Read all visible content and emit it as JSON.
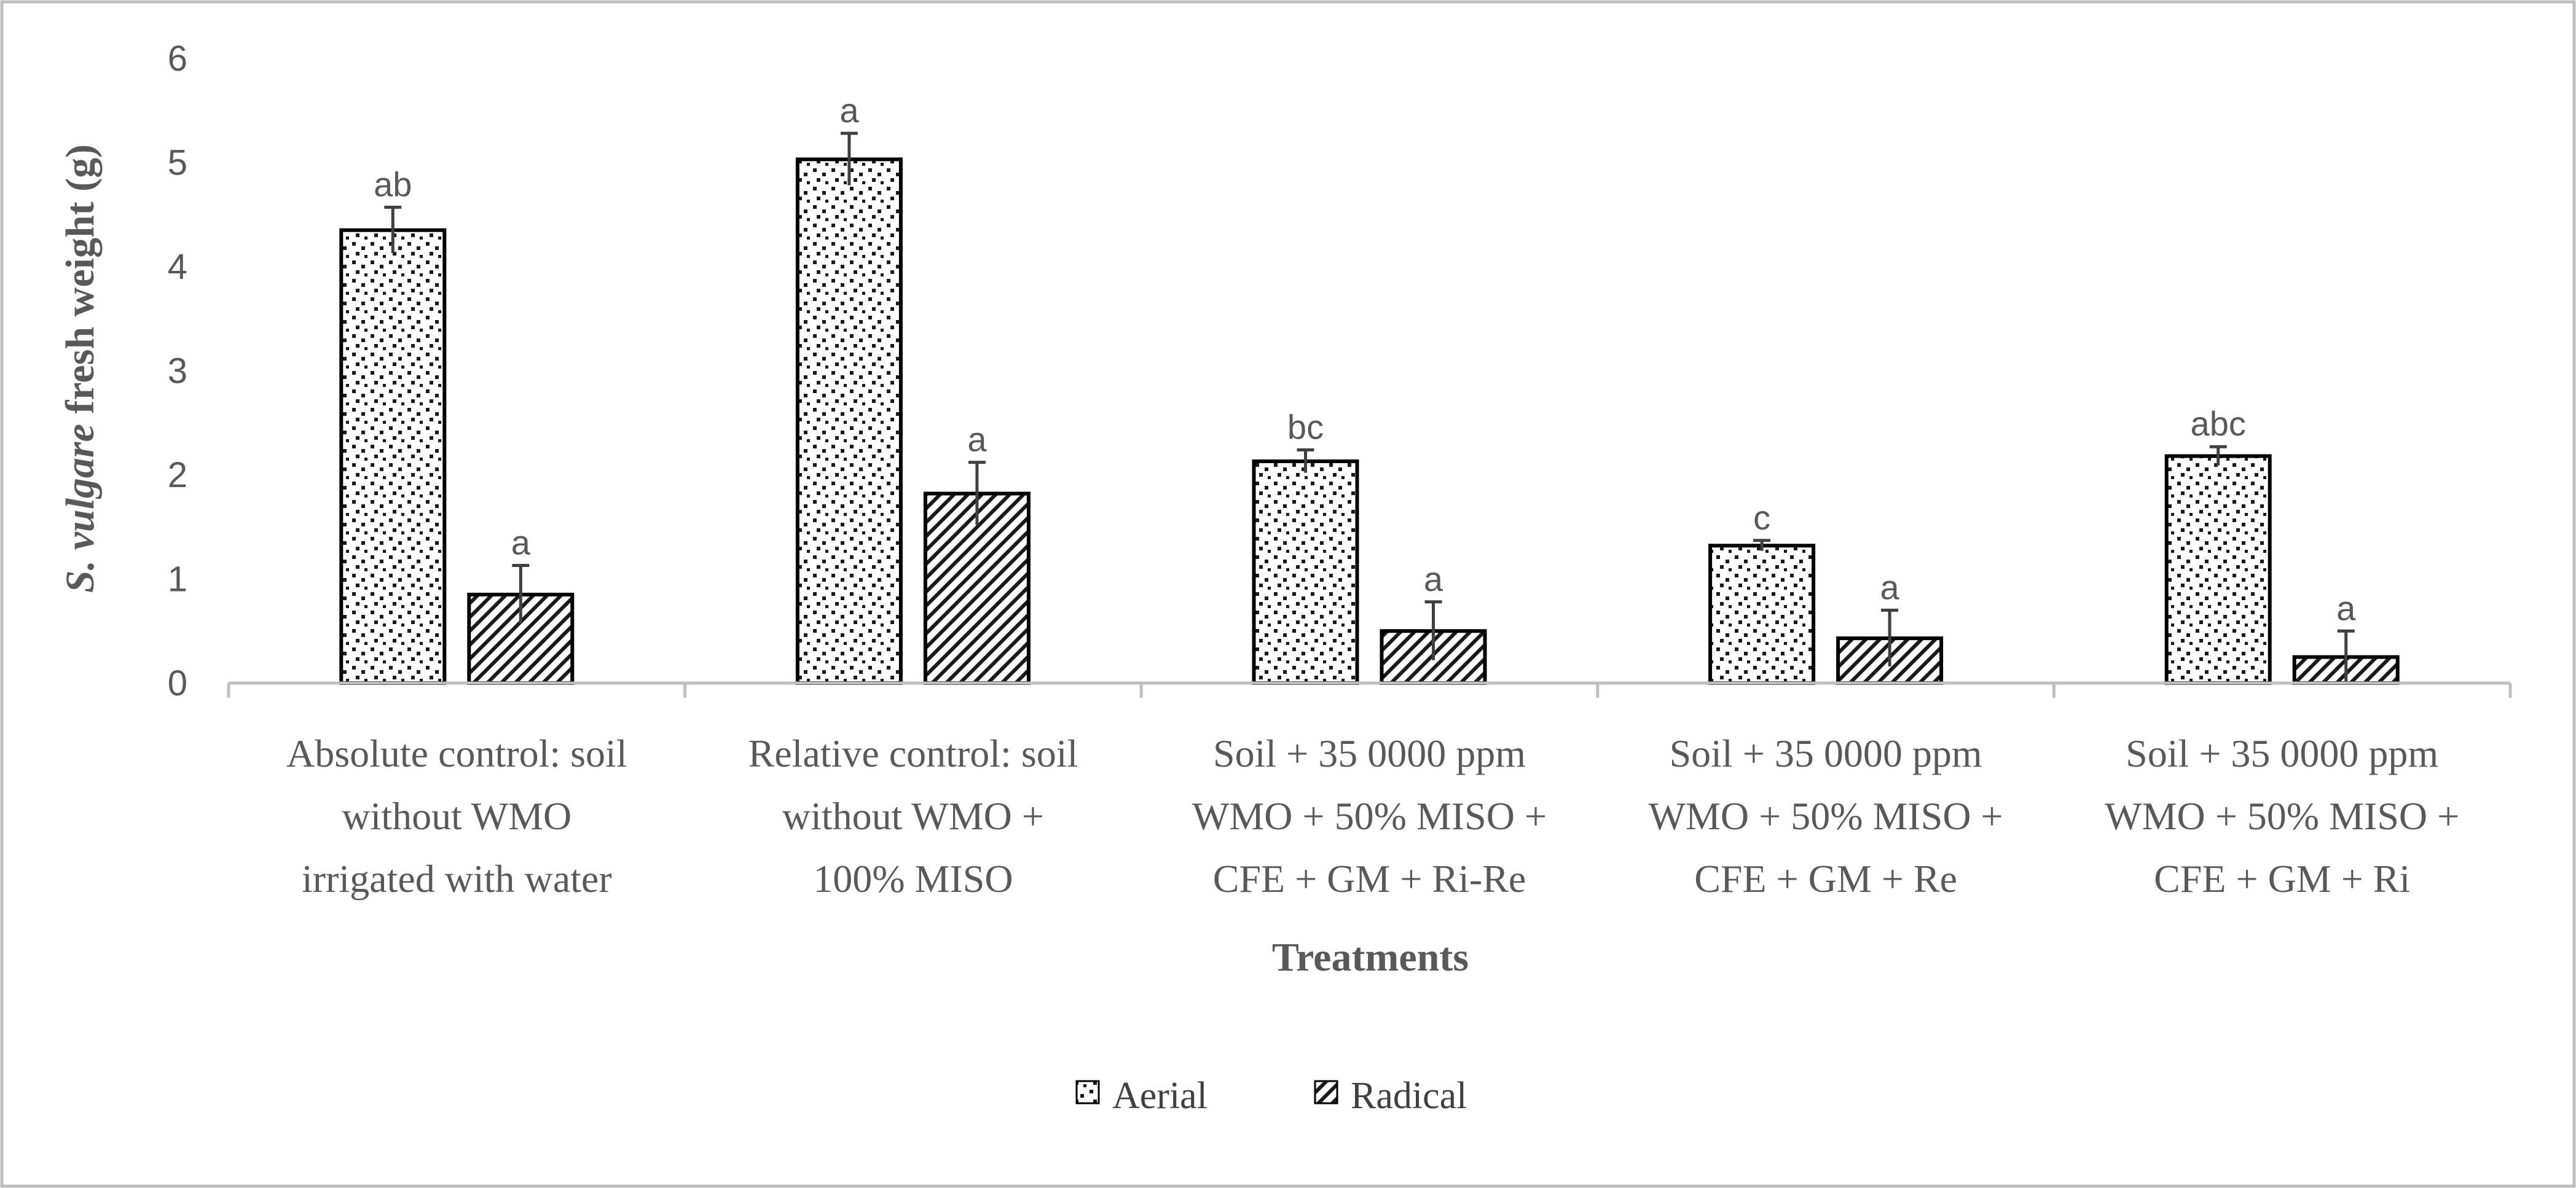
{
  "chart_data": {
    "type": "bar",
    "title": "",
    "ylabel_italic": "S. vulgare",
    "ylabel_rest": " fresh weight (g)",
    "xlabel": "Treatments",
    "ylim": [
      0,
      6
    ],
    "yticks": [
      "0",
      "1",
      "2",
      "3",
      "4",
      "5",
      "6"
    ],
    "grid": false,
    "legend_position": "bottom-center",
    "categories": [
      [
        "Absolute control: soil",
        "without WMO",
        "irrigated with water"
      ],
      [
        "Relative control: soil",
        "without WMO +",
        "100% MISO"
      ],
      [
        "Soil + 35 0000 ppm",
        "WMO + 50% MISO +",
        "CFE + GM +  Ri-Re"
      ],
      [
        "Soil + 35 0000 ppm",
        "WMO + 50% MISO +",
        "CFE + GM +  Re"
      ],
      [
        "Soil + 35 0000 ppm",
        "WMO + 50% MISO +",
        "CFE + GM +  Ri"
      ]
    ],
    "series": [
      {
        "name": "Aerial",
        "pattern": "dots",
        "values": [
          4.35,
          5.03,
          2.13,
          1.32,
          2.18
        ],
        "errors": [
          0.22,
          0.25,
          0.11,
          0.05,
          0.09
        ],
        "labels": [
          "ab",
          "a",
          "bc",
          "c",
          "abc"
        ]
      },
      {
        "name": "Radical",
        "pattern": "diagonal",
        "values": [
          0.85,
          1.82,
          0.5,
          0.43,
          0.25
        ],
        "errors": [
          0.28,
          0.3,
          0.28,
          0.27,
          0.25
        ],
        "labels": [
          "a",
          "a",
          "a",
          "a",
          "a"
        ]
      }
    ]
  }
}
